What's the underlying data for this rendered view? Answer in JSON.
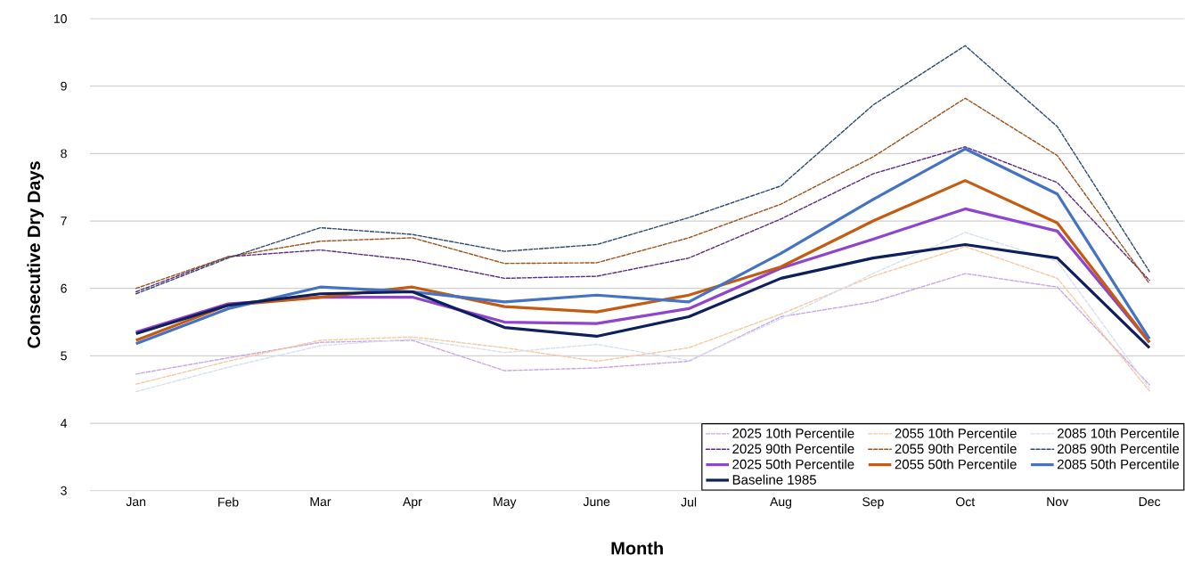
{
  "chart_data": {
    "type": "line",
    "xlabel": "Month",
    "ylabel": "Consecutive Dry Days",
    "categories": [
      "Jan",
      "Feb",
      "Mar",
      "Apr",
      "May",
      "June",
      "Jul",
      "Aug",
      "Sep",
      "Oct",
      "Nov",
      "Dec"
    ],
    "ylim": [
      3,
      10
    ],
    "yticks": [
      3,
      4,
      5,
      6,
      7,
      8,
      9,
      10
    ],
    "grid": "y",
    "legend": "bottom right",
    "marker": "none",
    "series": [
      {
        "name": "2025 10th Percentile",
        "color": "#c9a6e6",
        "line_style": "dashed",
        "values": [
          4.73,
          4.97,
          5.2,
          5.23,
          4.78,
          4.82,
          4.92,
          5.58,
          5.8,
          6.22,
          6.02,
          4.57
        ]
      },
      {
        "name": "2055 10th Percentile",
        "color": "#f8c9a0",
        "line_style": "dashed",
        "values": [
          4.58,
          4.92,
          5.23,
          5.28,
          5.12,
          4.92,
          5.12,
          5.62,
          6.18,
          6.62,
          6.15,
          4.48
        ]
      },
      {
        "name": "2085 10th Percentile",
        "color": "#d6e0f0",
        "line_style": "dashed",
        "values": [
          4.47,
          4.83,
          5.15,
          5.25,
          5.05,
          5.17,
          4.93,
          5.55,
          6.22,
          6.83,
          6.4,
          4.52
        ]
      },
      {
        "name": "2025 90th Percentile",
        "color": "#5b2c83",
        "line_style": "dashed",
        "values": [
          5.95,
          6.47,
          6.57,
          6.42,
          6.15,
          6.18,
          6.45,
          7.03,
          7.7,
          8.1,
          7.57,
          6.12
        ]
      },
      {
        "name": "2055 90th Percentile",
        "color": "#a0521c",
        "line_style": "dashed",
        "values": [
          6.0,
          6.47,
          6.7,
          6.75,
          6.37,
          6.38,
          6.75,
          7.25,
          7.95,
          8.82,
          7.97,
          6.07
        ]
      },
      {
        "name": "2085 90th Percentile",
        "color": "#2f4a74",
        "line_style": "dashed",
        "values": [
          5.92,
          6.45,
          6.9,
          6.8,
          6.55,
          6.65,
          7.05,
          7.52,
          8.72,
          9.6,
          8.4,
          6.25
        ]
      },
      {
        "name": "2025 50th Percentile",
        "color": "#8e44cc",
        "line_style": "solid",
        "values": [
          5.35,
          5.77,
          5.87,
          5.87,
          5.5,
          5.48,
          5.7,
          6.3,
          6.73,
          7.18,
          6.85,
          5.2
        ]
      },
      {
        "name": "2055 50th Percentile",
        "color": "#c55a11",
        "line_style": "solid",
        "values": [
          5.23,
          5.75,
          5.87,
          6.02,
          5.73,
          5.65,
          5.9,
          6.32,
          7.0,
          7.6,
          6.97,
          5.2
        ]
      },
      {
        "name": "2085 50th Percentile",
        "color": "#4472c4",
        "line_style": "solid",
        "values": [
          5.18,
          5.7,
          6.02,
          5.95,
          5.8,
          5.9,
          5.8,
          6.52,
          7.32,
          8.07,
          7.4,
          5.25
        ]
      },
      {
        "name": "Baseline 1985",
        "color": "#0d1f5c",
        "line_style": "solid",
        "values": [
          5.33,
          5.75,
          5.92,
          5.95,
          5.42,
          5.29,
          5.58,
          6.15,
          6.45,
          6.65,
          6.45,
          5.12
        ]
      }
    ]
  }
}
